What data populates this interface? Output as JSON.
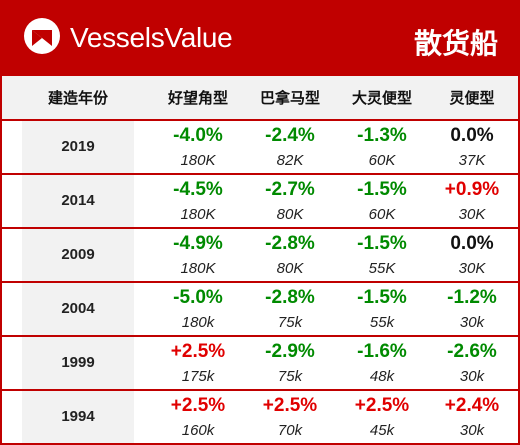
{
  "header": {
    "brand": "VesselsValue",
    "title": "散货船"
  },
  "chart_data": {
    "type": "table",
    "columns": [
      "建造年份",
      "好望角型",
      "巴拿马型",
      "大灵便型",
      "灵便型"
    ],
    "rows": [
      {
        "year": "2019",
        "cells": [
          {
            "change": "-4.0%",
            "value": "180K",
            "color": "green"
          },
          {
            "change": "-2.4%",
            "value": "82K",
            "color": "green"
          },
          {
            "change": "-1.3%",
            "value": "60K",
            "color": "green"
          },
          {
            "change": "0.0%",
            "value": "37K",
            "color": "black"
          }
        ]
      },
      {
        "year": "2014",
        "cells": [
          {
            "change": "-4.5%",
            "value": "180K",
            "color": "green"
          },
          {
            "change": "-2.7%",
            "value": "80K",
            "color": "green"
          },
          {
            "change": "-1.5%",
            "value": "60K",
            "color": "green"
          },
          {
            "change": "+0.9%",
            "value": "30K",
            "color": "red"
          }
        ]
      },
      {
        "year": "2009",
        "cells": [
          {
            "change": "-4.9%",
            "value": "180K",
            "color": "green"
          },
          {
            "change": "-2.8%",
            "value": "80K",
            "color": "green"
          },
          {
            "change": "-1.5%",
            "value": "55K",
            "color": "green"
          },
          {
            "change": "0.0%",
            "value": "30K",
            "color": "black"
          }
        ]
      },
      {
        "year": "2004",
        "cells": [
          {
            "change": "-5.0%",
            "value": "180k",
            "color": "green"
          },
          {
            "change": "-2.8%",
            "value": "75k",
            "color": "green"
          },
          {
            "change": "-1.5%",
            "value": "55k",
            "color": "green"
          },
          {
            "change": "-1.2%",
            "value": "30k",
            "color": "green"
          }
        ]
      },
      {
        "year": "1999",
        "cells": [
          {
            "change": "+2.5%",
            "value": "175k",
            "color": "red"
          },
          {
            "change": "-2.9%",
            "value": "75k",
            "color": "green"
          },
          {
            "change": "-1.6%",
            "value": "48k",
            "color": "green"
          },
          {
            "change": "-2.6%",
            "value": "30k",
            "color": "green"
          }
        ]
      },
      {
        "year": "1994",
        "cells": [
          {
            "change": "+2.5%",
            "value": "160k",
            "color": "red"
          },
          {
            "change": "+2.5%",
            "value": "70k",
            "color": "red"
          },
          {
            "change": "+2.5%",
            "value": "45k",
            "color": "red"
          },
          {
            "change": "+2.4%",
            "value": "30k",
            "color": "red"
          }
        ]
      }
    ]
  },
  "colors": {
    "brand_red": "#c00000",
    "negative": "#008a00",
    "positive": "#e00000",
    "neutral": "#111111"
  }
}
